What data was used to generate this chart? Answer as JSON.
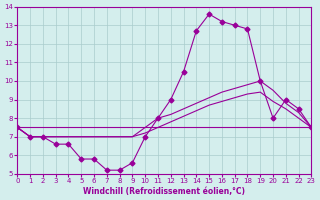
{
  "xlabel": "Windchill (Refroidissement éolien,°C)",
  "ylabel": "",
  "background_color": "#d4eeed",
  "line_color": "#990099",
  "grid_color": "#aacccc",
  "xlim": [
    0,
    23
  ],
  "ylim": [
    5,
    14
  ],
  "xticks": [
    0,
    1,
    2,
    3,
    4,
    5,
    6,
    7,
    8,
    9,
    10,
    11,
    12,
    13,
    14,
    15,
    16,
    17,
    18,
    19,
    20,
    21,
    22,
    23
  ],
  "yticks": [
    5,
    6,
    7,
    8,
    9,
    10,
    11,
    12,
    13,
    14
  ],
  "series": [
    {
      "x": [
        0,
        1,
        2,
        3,
        4,
        5,
        6,
        7,
        8,
        9,
        10,
        11,
        12,
        13,
        14,
        15,
        16,
        17,
        18,
        19,
        20,
        21,
        22,
        23
      ],
      "y": [
        7.5,
        7.0,
        7.0,
        6.6,
        6.6,
        5.8,
        5.8,
        5.2,
        5.2,
        5.6,
        7.0,
        8.0,
        9.0,
        10.5,
        12.7,
        13.6,
        13.2,
        13.0,
        12.8,
        10.0,
        8.0,
        9.0,
        8.5,
        7.5
      ],
      "marker": "D",
      "markersize": 2.5
    },
    {
      "x": [
        0,
        1,
        2,
        3,
        4,
        5,
        6,
        7,
        8,
        9,
        10,
        11,
        12,
        13,
        14,
        15,
        16,
        17,
        18,
        19,
        20,
        21,
        22,
        23
      ],
      "y": [
        7.5,
        7.0,
        7.0,
        7.0,
        7.0,
        7.0,
        7.0,
        7.0,
        7.0,
        7.0,
        7.5,
        8.0,
        8.2,
        8.5,
        8.8,
        9.1,
        9.4,
        9.6,
        9.8,
        10.0,
        9.5,
        8.8,
        8.3,
        7.5
      ],
      "marker": null,
      "markersize": 0
    },
    {
      "x": [
        0,
        1,
        2,
        3,
        4,
        5,
        6,
        7,
        8,
        9,
        10,
        11,
        12,
        13,
        14,
        15,
        16,
        17,
        18,
        19,
        20,
        21,
        22,
        23
      ],
      "y": [
        7.5,
        7.0,
        7.0,
        7.0,
        7.0,
        7.0,
        7.0,
        7.0,
        7.0,
        7.0,
        7.2,
        7.5,
        7.8,
        8.1,
        8.4,
        8.7,
        8.9,
        9.1,
        9.3,
        9.4,
        8.9,
        8.5,
        8.0,
        7.5
      ],
      "marker": null,
      "markersize": 0
    },
    {
      "x": [
        0,
        23
      ],
      "y": [
        7.5,
        7.5
      ],
      "marker": null,
      "markersize": 0
    }
  ]
}
